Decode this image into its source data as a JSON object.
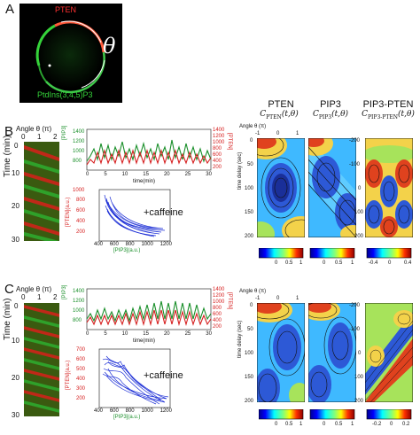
{
  "panelA": {
    "letter": "A",
    "label_top": "PTEN",
    "label_bottom": "PtdIns(3,4,5)P3",
    "theta": "θ"
  },
  "panelB": {
    "letter": "B",
    "angle_label": "Angle θ (π)",
    "angle_ticks": [
      "0",
      "1",
      "2"
    ],
    "time_label": "Time (min)",
    "time_ticks": [
      "0",
      "10",
      "20",
      "30"
    ],
    "trace_left_axis": "[PIP3]",
    "trace_right_axis": "[PTEN]",
    "trace_x_label": "time(min)",
    "trace_left_ticks": [
      "1400",
      "1200",
      "1000",
      "800"
    ],
    "trace_right_ticks": [
      "1400",
      "1200",
      "1000",
      "800",
      "600",
      "400",
      "200"
    ],
    "trace_x_ticks": [
      "0",
      "5",
      "10",
      "15",
      "20",
      "25",
      "30"
    ],
    "phase_y_label": "[PTEN](a.u.)",
    "phase_x_label": "[PIP3](a.u.)",
    "phase_y_ticks": [
      "1000",
      "800",
      "600",
      "400",
      "200"
    ],
    "phase_x_ticks": [
      "400",
      "600",
      "800",
      "1000",
      "1200"
    ],
    "caffeine": "+caffeine"
  },
  "panelC": {
    "letter": "C",
    "angle_label": "Angle θ (π)",
    "angle_ticks": [
      "0",
      "1",
      "2"
    ],
    "time_label": "Time (min)",
    "time_ticks": [
      "0",
      "10",
      "20",
      "30"
    ],
    "trace_left_axis": "[PIP3]",
    "trace_right_axis": "[PTEN]",
    "trace_x_label": "time(min)",
    "trace_left_ticks": [
      "1400",
      "1200",
      "1000",
      "800"
    ],
    "trace_right_ticks": [
      "1400",
      "1200",
      "1000",
      "800",
      "600",
      "400",
      "200"
    ],
    "trace_x_ticks": [
      "0",
      "5",
      "10",
      "15",
      "20",
      "25",
      "30"
    ],
    "phase_y_label": "[PTEN](a.u.)",
    "phase_x_label": "[PIP3](a.u.)",
    "phase_y_ticks": [
      "700",
      "600",
      "500",
      "400",
      "300",
      "200"
    ],
    "phase_x_ticks": [
      "400",
      "600",
      "800",
      "1000",
      "1200"
    ],
    "caffeine": "+caffeine"
  },
  "corr": {
    "col1_title": "PTEN",
    "col1_sub": "C",
    "col1_subsub": "PTEN",
    "col1_args": "(t,θ)",
    "col2_title": "PIP3",
    "col2_sub": "C",
    "col2_subsub": "PIP3",
    "col2_args": "(t,θ)",
    "col3_title": "PIP3-PTEN",
    "col3_sub": "C",
    "col3_subsub": "PIP3-PTEN",
    "col3_args": "(t,θ)",
    "angle_label": "Angle θ (π)",
    "angle_ticks": [
      "-1",
      "0",
      "1"
    ],
    "delay_label": "time delay (sec)",
    "delay_ticks": [
      "0",
      "50",
      "100",
      "150",
      "200"
    ],
    "delay_ticks_neg": [
      "-200",
      "-100",
      "0",
      "100",
      "200"
    ],
    "cbar1": [
      "0",
      "0.5",
      "1"
    ],
    "cbar2": [
      "0",
      "0.5",
      "1"
    ],
    "cbar3": [
      "-0.4",
      "0",
      "0.4"
    ],
    "cbarC3": [
      "-0.2",
      "0",
      "0.2"
    ]
  },
  "colors": {
    "pip3": "#1a8f2a",
    "pten": "#d62020",
    "phase": "#1d2fd6"
  }
}
